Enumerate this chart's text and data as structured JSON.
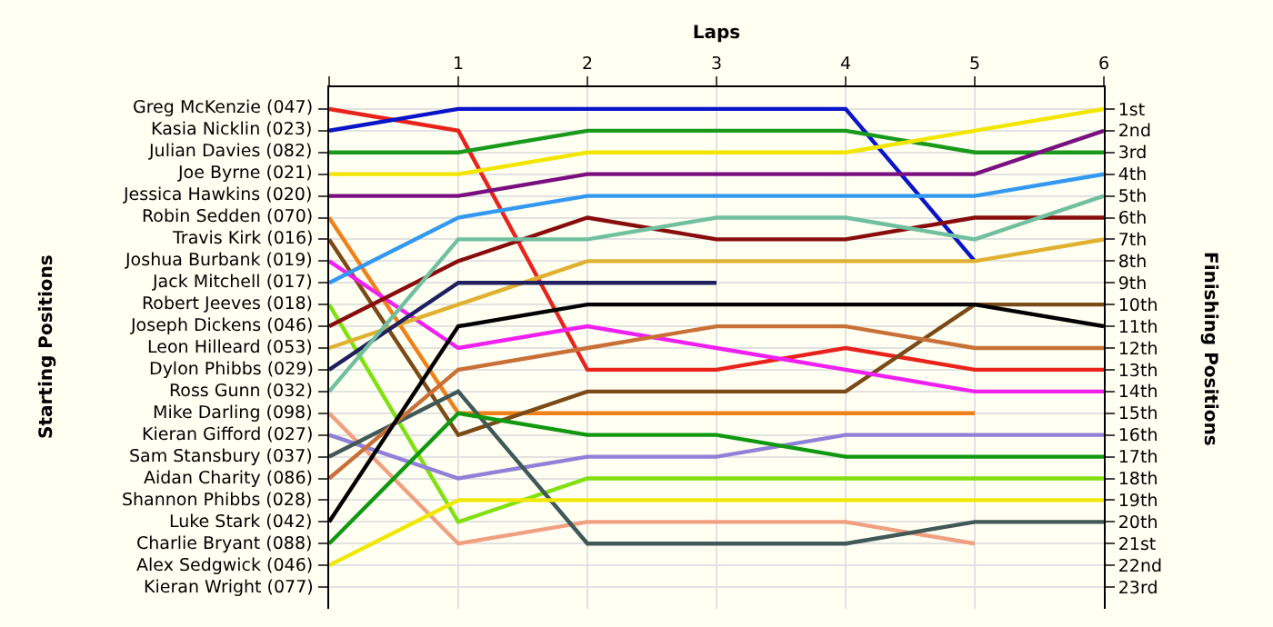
{
  "chart_data": {
    "type": "line",
    "xlabel": "Laps",
    "ylabel": "Finishing Positions",
    "annotations": [
      "Starting Positions",
      "Shannon Phibbs (028)",
      "Kieran Wright (077)"
    ],
    "x": [
      0,
      1,
      2,
      3,
      4,
      5,
      6
    ],
    "xlim": [
      0,
      6
    ],
    "xticks": [
      {
        "value": 0,
        "label": null
      },
      1,
      2,
      3,
      4,
      5,
      6
    ],
    "ylim": [
      24,
      0
    ],
    "yticks": [
      {
        "value": 1,
        "label": "1st"
      },
      {
        "value": 2,
        "label": "2nd"
      },
      {
        "value": 3,
        "label": "3rd"
      },
      {
        "value": 4,
        "label": "4th"
      },
      {
        "value": 5,
        "label": "5th"
      },
      {
        "value": 6,
        "label": "6th"
      },
      {
        "value": 7,
        "label": "7th"
      },
      {
        "value": 8,
        "label": "8th"
      },
      {
        "value": 9,
        "label": "9th"
      },
      {
        "value": 10,
        "label": "10th"
      },
      {
        "value": 11,
        "label": "11th"
      },
      {
        "value": 12,
        "label": "12th"
      },
      {
        "value": 13,
        "label": "13th"
      },
      {
        "value": 14,
        "label": "14th"
      },
      {
        "value": 15,
        "label": "15th"
      },
      {
        "value": 16,
        "label": "16th"
      },
      {
        "value": 17,
        "label": "17th"
      },
      {
        "value": 18,
        "label": "18th"
      },
      {
        "value": 19,
        "label": "19th"
      },
      {
        "value": 20,
        "label": "20th"
      },
      {
        "value": 21,
        "label": "21st"
      },
      {
        "value": 22,
        "label": "22nd"
      },
      {
        "value": 23,
        "label": "23rd"
      }
    ],
    "grid": true,
    "legend": "left",
    "marker": "none",
    "line_style": "solid",
    "series": [
      {
        "name": "Greg McKenzie (047)",
        "color": "#e8231b",
        "values": [
          1,
          2,
          13,
          13,
          12,
          13,
          13
        ]
      },
      {
        "name": "Kasia Nicklin (023)",
        "color": "#0a14c8",
        "values": [
          2,
          1,
          1,
          1,
          1,
          8,
          null
        ]
      },
      {
        "name": "Julian Davies (082)",
        "color": "#1a9a1a",
        "values": [
          3,
          3,
          2,
          2,
          2,
          3,
          3
        ]
      },
      {
        "name": "Joe Byrne (021)",
        "color": "#f2e600",
        "values": [
          4,
          4,
          3,
          3,
          3,
          2,
          1
        ]
      },
      {
        "name": "Jessica Hawkins (020)",
        "color": "#7a1080",
        "values": [
          5,
          5,
          4,
          4,
          4,
          4,
          2
        ]
      },
      {
        "name": "Robin Sedden (070)",
        "color": "#f08018",
        "values": [
          6,
          15,
          15,
          15,
          15,
          15,
          null
        ]
      },
      {
        "name": "Travis Kirk (016)",
        "color": "#7a4a18",
        "values": [
          7,
          16,
          14,
          14,
          14,
          10,
          10
        ]
      },
      {
        "name": "Joshua Burbank (019)",
        "color": "#f020f0",
        "values": [
          8,
          12,
          11,
          12,
          13,
          14,
          14
        ]
      },
      {
        "name": "Jack Mitchell (017)",
        "color": "#3398f0",
        "values": [
          9,
          6,
          5,
          5,
          5,
          5,
          4
        ]
      },
      {
        "name": "Robert Jeeves (018)",
        "color": "#80e010",
        "values": [
          10,
          20,
          18,
          18,
          18,
          18,
          18
        ]
      },
      {
        "name": "Joseph Dickens (046)",
        "color": "#880c0c",
        "values": [
          11,
          8,
          6,
          7,
          7,
          6,
          6
        ]
      },
      {
        "name": "Leon Hilleard (053)",
        "color": "#e0b030",
        "values": [
          12,
          10,
          8,
          8,
          8,
          8,
          7
        ]
      },
      {
        "name": "Dylon Phibbs (029)",
        "color": "#202060",
        "values": [
          13,
          9,
          9,
          9,
          null,
          null,
          null
        ]
      },
      {
        "name": "Ross Gunn (032)",
        "color": "#70c0a0",
        "values": [
          14,
          7,
          7,
          6,
          6,
          7,
          5
        ]
      },
      {
        "name": "Mike Darling (098)",
        "color": "#f0a080",
        "values": [
          15,
          21,
          20,
          20,
          20,
          21,
          null
        ]
      },
      {
        "name": "Kieran Gifford (027)",
        "color": "#9080d8",
        "values": [
          16,
          18,
          17,
          17,
          16,
          16,
          16
        ]
      },
      {
        "name": "Sam Stansbury (037)",
        "color": "#405858",
        "values": [
          17,
          14,
          21,
          21,
          21,
          20,
          20
        ]
      },
      {
        "name": "Aidan Charity (086)",
        "color": "#c87038",
        "values": [
          18,
          13,
          12,
          11,
          11,
          12,
          12
        ]
      },
      {
        "name": "Luke Stark (042)",
        "color": "#000000",
        "values": [
          20,
          11,
          10,
          10,
          10,
          10,
          11
        ]
      },
      {
        "name": "Charlie Bryant (088)",
        "color": "#109810",
        "values": [
          21,
          15,
          16,
          16,
          17,
          17,
          17
        ]
      },
      {
        "name": "Alex Sedgwick (046)",
        "color": "#f0e800",
        "values": [
          22,
          19,
          19,
          19,
          19,
          19,
          19
        ]
      }
    ]
  }
}
